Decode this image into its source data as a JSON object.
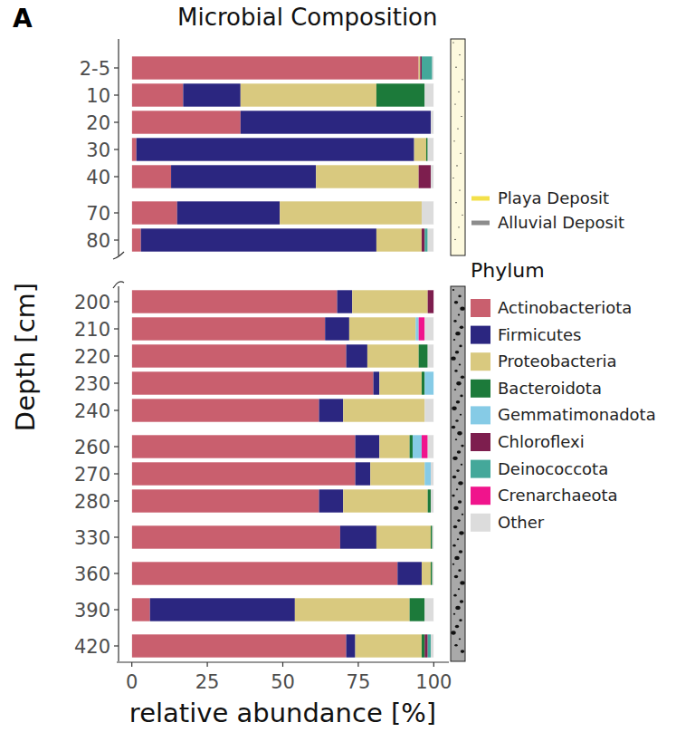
{
  "chart_data": {
    "type": "bar",
    "orientation": "horizontal",
    "stacked": true,
    "title": "Microbial Composition",
    "annotations": [
      "A"
    ],
    "x_label": "relative abundance [%]",
    "y_label": "Depth [cm]",
    "legend_title": "Phylum",
    "categories": [
      "2-5",
      "10",
      "20",
      "30",
      "40",
      "70",
      "80",
      "200",
      "210",
      "220",
      "230",
      "240",
      "260",
      "270",
      "280",
      "330",
      "360",
      "390",
      "420"
    ],
    "series": [
      {
        "name": "Actinobacteriota",
        "color": "#c95f6e",
        "values": [
          95,
          17,
          36,
          1.5,
          13,
          15,
          3,
          68,
          64,
          71,
          80,
          62,
          74,
          74,
          62,
          69,
          88,
          6,
          71
        ]
      },
      {
        "name": "Firmicutes",
        "color": "#2b2680",
        "values": [
          0,
          19,
          63,
          92,
          48,
          34,
          78,
          5,
          8,
          7,
          2,
          8,
          8,
          5,
          8,
          12,
          8,
          48,
          3
        ]
      },
      {
        "name": "Proteobacteria",
        "color": "#d9c97f",
        "values": [
          0.5,
          45,
          0,
          4,
          34,
          47,
          15,
          25,
          22,
          17,
          14,
          27,
          10,
          18,
          28,
          18,
          3,
          38,
          22
        ]
      },
      {
        "name": "Bacteroidota",
        "color": "#1c7a3a",
        "values": [
          0,
          16,
          0,
          0.5,
          0,
          0,
          0,
          0,
          0,
          3,
          1,
          0,
          1,
          0,
          1,
          0.5,
          0.5,
          5,
          1
        ]
      },
      {
        "name": "Gemmatimonadota",
        "color": "#86cbe6",
        "values": [
          0,
          0,
          0,
          0,
          0,
          0,
          0,
          0,
          1,
          0,
          3,
          0,
          3,
          2,
          0,
          0,
          0,
          0,
          0
        ]
      },
      {
        "name": "Chloroflexi",
        "color": "#7d1e4e",
        "values": [
          0.5,
          0,
          0,
          0,
          4,
          0,
          1,
          2,
          0,
          0,
          0,
          0,
          0,
          0,
          0,
          0,
          0,
          0,
          1
        ]
      },
      {
        "name": "Deinococcota",
        "color": "#44a89a",
        "values": [
          3.5,
          0,
          0,
          0,
          0,
          0,
          1,
          0,
          0,
          0,
          0,
          0,
          0,
          0,
          0,
          0,
          0,
          0,
          1
        ]
      },
      {
        "name": "Crenarchaeota",
        "color": "#f0148c",
        "values": [
          0,
          0,
          0,
          0,
          0,
          0,
          0,
          0,
          2,
          0,
          0,
          0,
          2,
          0,
          0,
          0,
          0,
          0,
          0
        ]
      },
      {
        "name": "Other",
        "color": "#dcdcdc",
        "values": [
          0.5,
          3,
          1,
          2,
          1,
          4,
          2,
          0,
          3,
          2,
          0,
          3,
          2,
          1,
          1,
          0.5,
          0.5,
          3,
          1
        ]
      }
    ],
    "xlim": [
      -5,
      105
    ],
    "xticks": [
      0,
      25,
      50,
      75,
      100
    ],
    "legend": "right",
    "deposits": [
      {
        "name": "Playa Deposit",
        "color": "#f3e04a",
        "categories": [
          "2-5",
          "10",
          "20",
          "30",
          "40",
          "70",
          "80"
        ]
      },
      {
        "name": "Alluvial Deposit",
        "color": "#8c8c8c",
        "categories": [
          "200",
          "210",
          "220",
          "230",
          "240",
          "260",
          "270",
          "280",
          "330",
          "360",
          "390",
          "420"
        ]
      }
    ]
  }
}
